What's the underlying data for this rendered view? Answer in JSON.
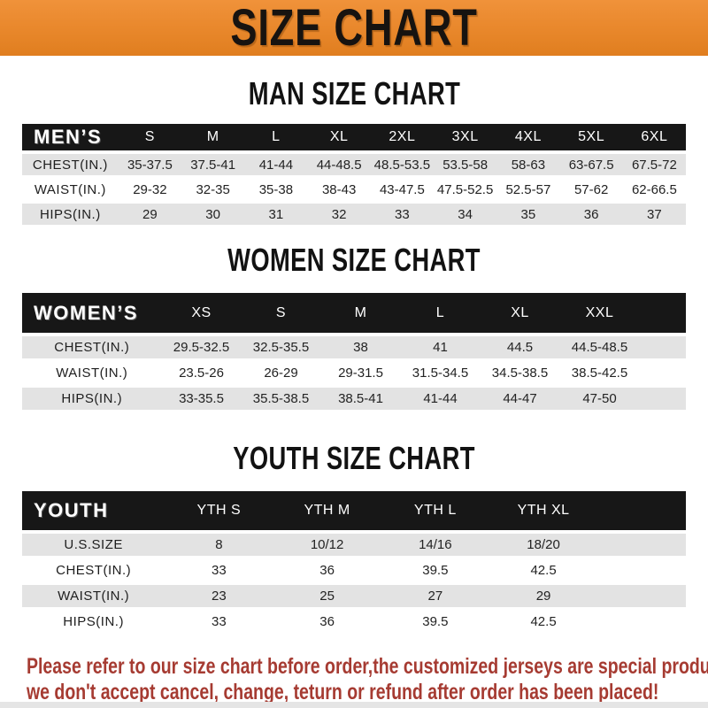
{
  "colors": {
    "accent_orange": "#E8872B",
    "bar_black": "#171717",
    "row_gray": "#E3E3E3",
    "note_red": "#A63B32"
  },
  "banner": {
    "title": "SIZE CHART"
  },
  "sections": [
    {
      "id": "men",
      "title": "MAN SIZE CHART",
      "header_label": "MEN’S",
      "columns": [
        "S",
        "M",
        "L",
        "XL",
        "2XL",
        "3XL",
        "4XL",
        "5XL",
        "6XL"
      ],
      "rows": [
        {
          "label": "CHEST(IN.)",
          "values": [
            "35-37.5",
            "37.5-41",
            "41-44",
            "44-48.5",
            "48.5-53.5",
            "53.5-58",
            "58-63",
            "63-67.5",
            "67.5-72"
          ]
        },
        {
          "label": "WAIST(IN.)",
          "values": [
            "29-32",
            "32-35",
            "35-38",
            "38-43",
            "43-47.5",
            "47.5-52.5",
            "52.5-57",
            "57-62",
            "62-66.5"
          ]
        },
        {
          "label": "HIPS(IN.)",
          "values": [
            "29",
            "30",
            "31",
            "32",
            "33",
            "34",
            "35",
            "36",
            "37"
          ]
        }
      ]
    },
    {
      "id": "women",
      "title": "WOMEN SIZE CHART",
      "header_label": "WOMEN’S",
      "columns": [
        "XS",
        "S",
        "M",
        "L",
        "XL",
        "XXL"
      ],
      "rows": [
        {
          "label": "CHEST(IN.)",
          "values": [
            "29.5-32.5",
            "32.5-35.5",
            "38",
            "41",
            "44.5",
            "44.5-48.5"
          ]
        },
        {
          "label": "WAIST(IN.)",
          "values": [
            "23.5-26",
            "26-29",
            "29-31.5",
            "31.5-34.5",
            "34.5-38.5",
            "38.5-42.5"
          ]
        },
        {
          "label": "HIPS(IN.)",
          "values": [
            "33-35.5",
            "35.5-38.5",
            "38.5-41",
            "41-44",
            "44-47",
            "47-50"
          ]
        }
      ]
    },
    {
      "id": "youth",
      "title": "YOUTH SIZE CHART",
      "header_label": "YOUTH",
      "columns": [
        "YTH S",
        "YTH M",
        "YTH L",
        "YTH XL"
      ],
      "rows": [
        {
          "label": "U.S.SIZE",
          "values": [
            "8",
            "10/12",
            "14/16",
            "18/20"
          ]
        },
        {
          "label": "CHEST(IN.)",
          "values": [
            "33",
            "36",
            "39.5",
            "42.5"
          ]
        },
        {
          "label": "WAIST(IN.)",
          "values": [
            "23",
            "25",
            "27",
            "29"
          ]
        },
        {
          "label": "HIPS(IN.)",
          "values": [
            "33",
            "36",
            "39.5",
            "42.5"
          ]
        }
      ]
    }
  ],
  "footer": {
    "lines": [
      "Please refer to our size chart before order,the customized jerseys are special products,",
      "we don't accept cancel, change, teturn or refund after order has been placed!"
    ]
  }
}
